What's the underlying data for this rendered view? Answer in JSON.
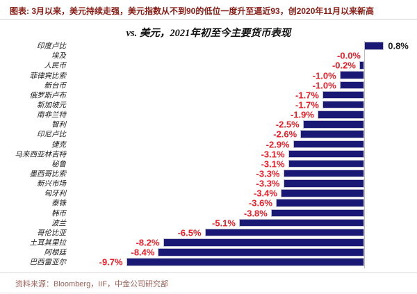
{
  "page": {
    "caption": "图表: 3月以来，美元持续走强，美元指数从不到90的低位一度升至逼近93，创2020年11月以来新高",
    "source": "资料来源：Bloomberg，IIF，中金公司研究部"
  },
  "chart_data": {
    "type": "bar",
    "orientation": "horizontal",
    "title": "vs. 美元，2021年初至今主要货币表现",
    "value_unit": "%",
    "xlim": [
      -10.3,
      1.2
    ],
    "grid": false,
    "legend": false,
    "colors": {
      "bar": "#191975",
      "negative_label": "#ee1c25",
      "positive_label": "#1a1a1a",
      "axis": "#bdbdbd"
    },
    "categories": [
      "印度卢比",
      "埃及",
      "人民币",
      "菲律宾比索",
      "新台币",
      "俄罗斯卢布",
      "新加坡元",
      "南非兰特",
      "智利",
      "印尼卢比",
      "捷克",
      "马来西亚林吉特",
      "秘鲁",
      "墨西哥比索",
      "新兴市场",
      "匈牙利",
      "泰铢",
      "韩币",
      "波兰",
      "哥伦比亚",
      "土耳其里拉",
      "阿根廷",
      "巴西雷亚尔"
    ],
    "values": [
      0.8,
      -0.0,
      -0.2,
      -1.0,
      -1.0,
      -1.7,
      -1.7,
      -1.9,
      -2.5,
      -2.6,
      -2.9,
      -3.1,
      -3.1,
      -3.3,
      -3.3,
      -3.4,
      -3.6,
      -3.8,
      -5.1,
      -6.5,
      -8.2,
      -8.4,
      -9.7
    ],
    "labels": [
      "0.8%",
      "-0.0%",
      "-0.2%",
      "-1.0%",
      "-1.0%",
      "-1.7%",
      "-1.7%",
      "-1.9%",
      "-2.5%",
      "-2.6%",
      "-2.9%",
      "-3.1%",
      "-3.1%",
      "-3.3%",
      "-3.3%",
      "-3.4%",
      "-3.6%",
      "-3.8%",
      "-5.1%",
      "-6.5%",
      "-8.2%",
      "-8.4%",
      "-9.7%"
    ]
  }
}
